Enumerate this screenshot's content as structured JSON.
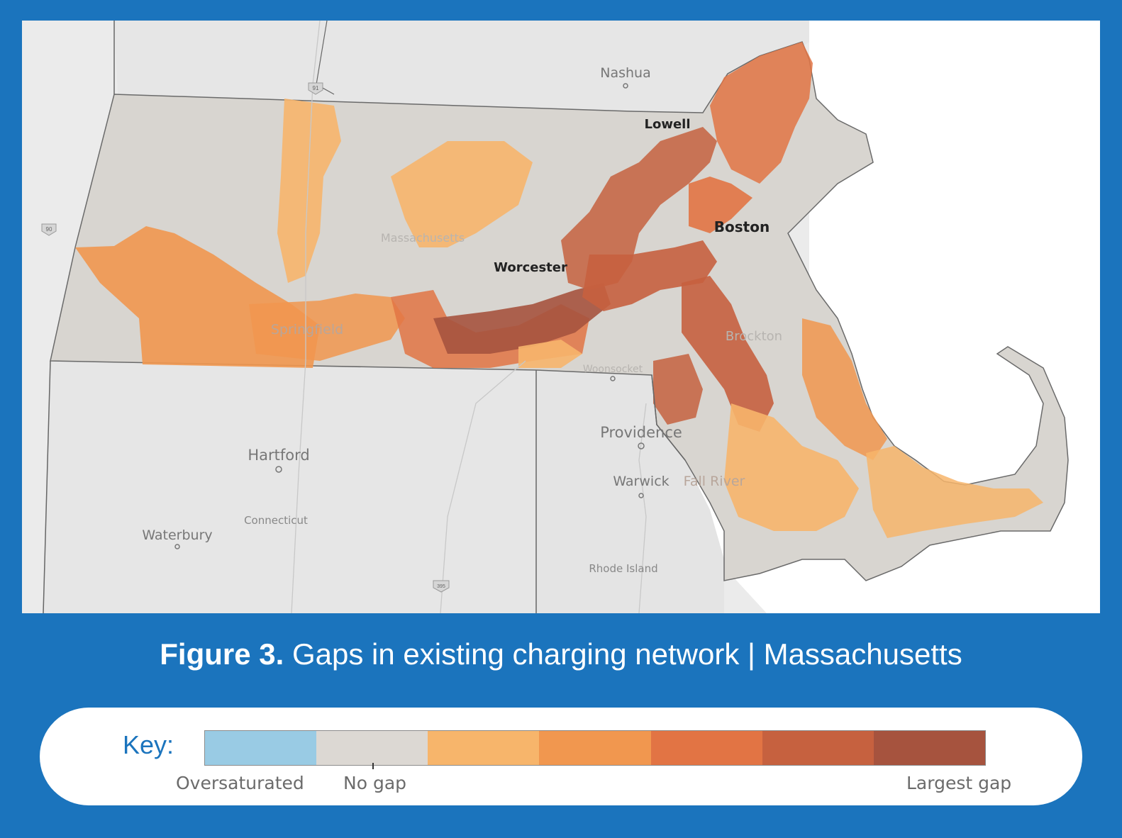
{
  "caption": {
    "figure_number": "Figure 3.",
    "title": "Gaps in existing charging network | Massachusetts"
  },
  "key": {
    "label": "Key:",
    "low_label": "Oversaturated",
    "mid_label": "No gap",
    "high_label": "Largest gap",
    "colors": [
      "#99cbe4",
      "#dcd8d3",
      "#f7b56b",
      "#f1974f",
      "#e27444",
      "#c6613f",
      "#a6533e"
    ]
  },
  "map": {
    "state_labels": {
      "massachusetts": "Massachusetts",
      "connecticut": "Connecticut",
      "rhode_island": "Rhode Island"
    },
    "cities": {
      "nashua": "Nashua",
      "lowell": "Lowell",
      "boston": "Boston",
      "worcester": "Worcester",
      "springfield": "Springfield",
      "brockton": "Brockton",
      "woonsocket": "Woonsocket",
      "providence": "Providence",
      "hartford": "Hartford",
      "warwick": "Warwick",
      "fall_river": "Fall River",
      "waterbury": "Waterbury"
    },
    "highway_shields": {
      "i91": "91",
      "i90": "90",
      "i395": "395"
    },
    "colors": {
      "background": "#ebebeb",
      "land_outside": "#e6e6e6",
      "water": "#ffffff",
      "no_gap": "#d8d5d0",
      "small_gap": "#f7b56b",
      "moderate_gap": "#f1974f",
      "high_gap": "#e27444",
      "larger_gap": "#c6613f",
      "largest_gap": "#a6533e"
    }
  }
}
